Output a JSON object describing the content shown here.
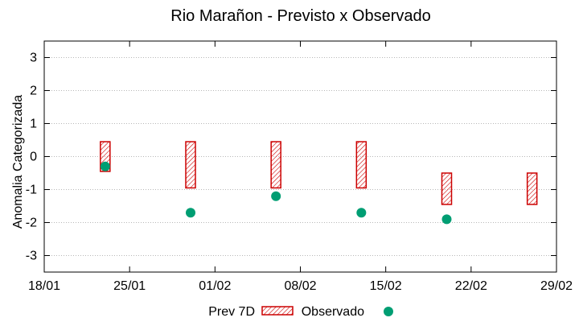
{
  "chart_data": {
    "type": "interval-scatter",
    "title": "Rio Marañon - Previsto x Observado",
    "xlabel": "",
    "ylabel": "Anomalia Categorizada",
    "x_ticks": [
      "18/01",
      "25/01",
      "01/02",
      "08/02",
      "15/02",
      "22/02",
      "29/02"
    ],
    "xlim_days": [
      0,
      42
    ],
    "ylim": [
      -3.5,
      3.5
    ],
    "y_ticks": [
      "-3",
      "-2",
      "-1",
      "0",
      "1",
      "2",
      "3"
    ],
    "y_tick_values": [
      -3,
      -2,
      -1,
      0,
      1,
      2,
      3
    ],
    "grid": true,
    "legend": {
      "placement": "bottom-center",
      "entries": [
        {
          "label": "Prev 7D",
          "kind": "hatched-box"
        },
        {
          "label": "Observado",
          "kind": "dot"
        }
      ]
    },
    "series": [
      {
        "name": "Prev 7D",
        "color": "#cc0000",
        "points": [
          {
            "x_day": 5,
            "low": -0.45,
            "high": 0.45
          },
          {
            "x_day": 12,
            "low": -0.95,
            "high": 0.45
          },
          {
            "x_day": 19,
            "low": -0.95,
            "high": 0.45
          },
          {
            "x_day": 26,
            "low": -0.95,
            "high": 0.45
          },
          {
            "x_day": 33,
            "low": -1.45,
            "high": -0.5
          },
          {
            "x_day": 40,
            "low": -1.45,
            "high": -0.5
          }
        ]
      },
      {
        "name": "Observado",
        "color": "#009e73",
        "points": [
          {
            "x_day": 5,
            "y": -0.3
          },
          {
            "x_day": 12,
            "y": -1.7
          },
          {
            "x_day": 19,
            "y": -1.2
          },
          {
            "x_day": 26,
            "y": -1.7
          },
          {
            "x_day": 33,
            "y": -1.9
          }
        ]
      }
    ]
  }
}
